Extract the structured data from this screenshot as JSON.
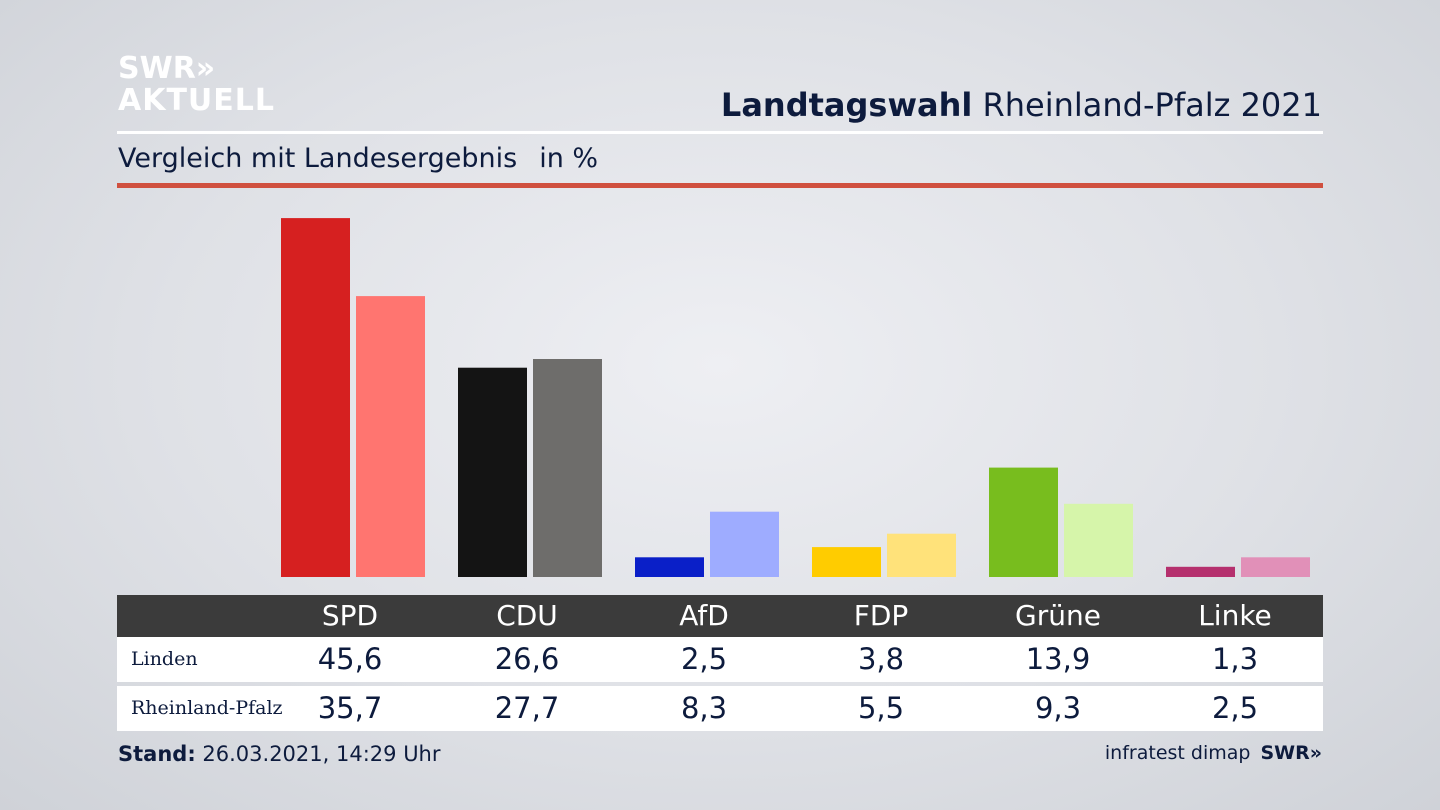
{
  "brand": {
    "line1": "SWR»",
    "line2": "AKTUELL"
  },
  "header": {
    "title_bold": "Landtagswahl",
    "title_rest": "Rheinland-Pfalz 2021"
  },
  "subheader": {
    "text": "Vergleich mit Landesergebnis",
    "unit": "in %"
  },
  "colors": {
    "rule_red": "#d0503f",
    "parties": {
      "SPD": [
        "#d62020",
        "#ff7570"
      ],
      "CDU": [
        "#141414",
        "#6e6d6b"
      ],
      "AfD": [
        "#0a1fc8",
        "#9eacff"
      ],
      "FDP": [
        "#ffcc00",
        "#ffe27a"
      ],
      "Grüne": [
        "#78bd1e",
        "#d6f5aa"
      ],
      "Linke": [
        "#b5306e",
        "#e190b8"
      ]
    }
  },
  "chart_data": {
    "type": "bar",
    "title": "Landtagswahl Rheinland-Pfalz 2021",
    "subtitle": "Vergleich mit Landesergebnis in %",
    "categories": [
      "SPD",
      "CDU",
      "AfD",
      "FDP",
      "Grüne",
      "Linke"
    ],
    "series": [
      {
        "name": "Linden",
        "values": [
          45.6,
          26.6,
          2.5,
          3.8,
          13.9,
          1.3
        ]
      },
      {
        "name": "Rheinland-Pfalz",
        "values": [
          35.7,
          27.7,
          8.3,
          5.5,
          9.3,
          2.5
        ]
      }
    ],
    "ylim": [
      0,
      46
    ],
    "grid": false,
    "xlabel": "",
    "ylabel": ""
  },
  "table": {
    "columns": [
      "SPD",
      "CDU",
      "AfD",
      "FDP",
      "Grüne",
      "Linke"
    ],
    "rows": [
      {
        "label": "Linden",
        "values": [
          "45,6",
          "26,6",
          "2,5",
          "3,8",
          "13,9",
          "1,3"
        ]
      },
      {
        "label": "Rheinland-Pfalz",
        "values": [
          "35,7",
          "27,7",
          "8,3",
          "5,5",
          "9,3",
          "2,5"
        ]
      }
    ]
  },
  "footer": {
    "stand_label": "Stand:",
    "stand_value": "26.03.2021, 14:29 Uhr",
    "source": "infratest dimap",
    "source_logo": "SWR»"
  }
}
